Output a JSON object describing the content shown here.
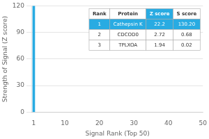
{
  "chart_data": {
    "type": "bar",
    "x": [
      1
    ],
    "values": [
      120
    ],
    "color": "#29ABE2",
    "xlabel": "Signal Rank (Top 50)",
    "ylabel": "Strength of Signal (Z score)",
    "xlim": [
      0.5,
      50
    ],
    "xticks": [
      1,
      10,
      20,
      30,
      40,
      50
    ],
    "ylim": [
      0,
      120
    ],
    "yticks": [
      0,
      30,
      60,
      90,
      120
    ],
    "grid": true,
    "table": [
      [
        "Rank",
        "Protein",
        "Z score",
        "S score"
      ],
      [
        "1",
        "Cathepsin K",
        "22.2",
        "130.20"
      ],
      [
        "2",
        "CDCOD0",
        "2.72",
        "0.68"
      ],
      [
        "3",
        "TPLXOA",
        "1.94",
        "0.02"
      ]
    ]
  }
}
